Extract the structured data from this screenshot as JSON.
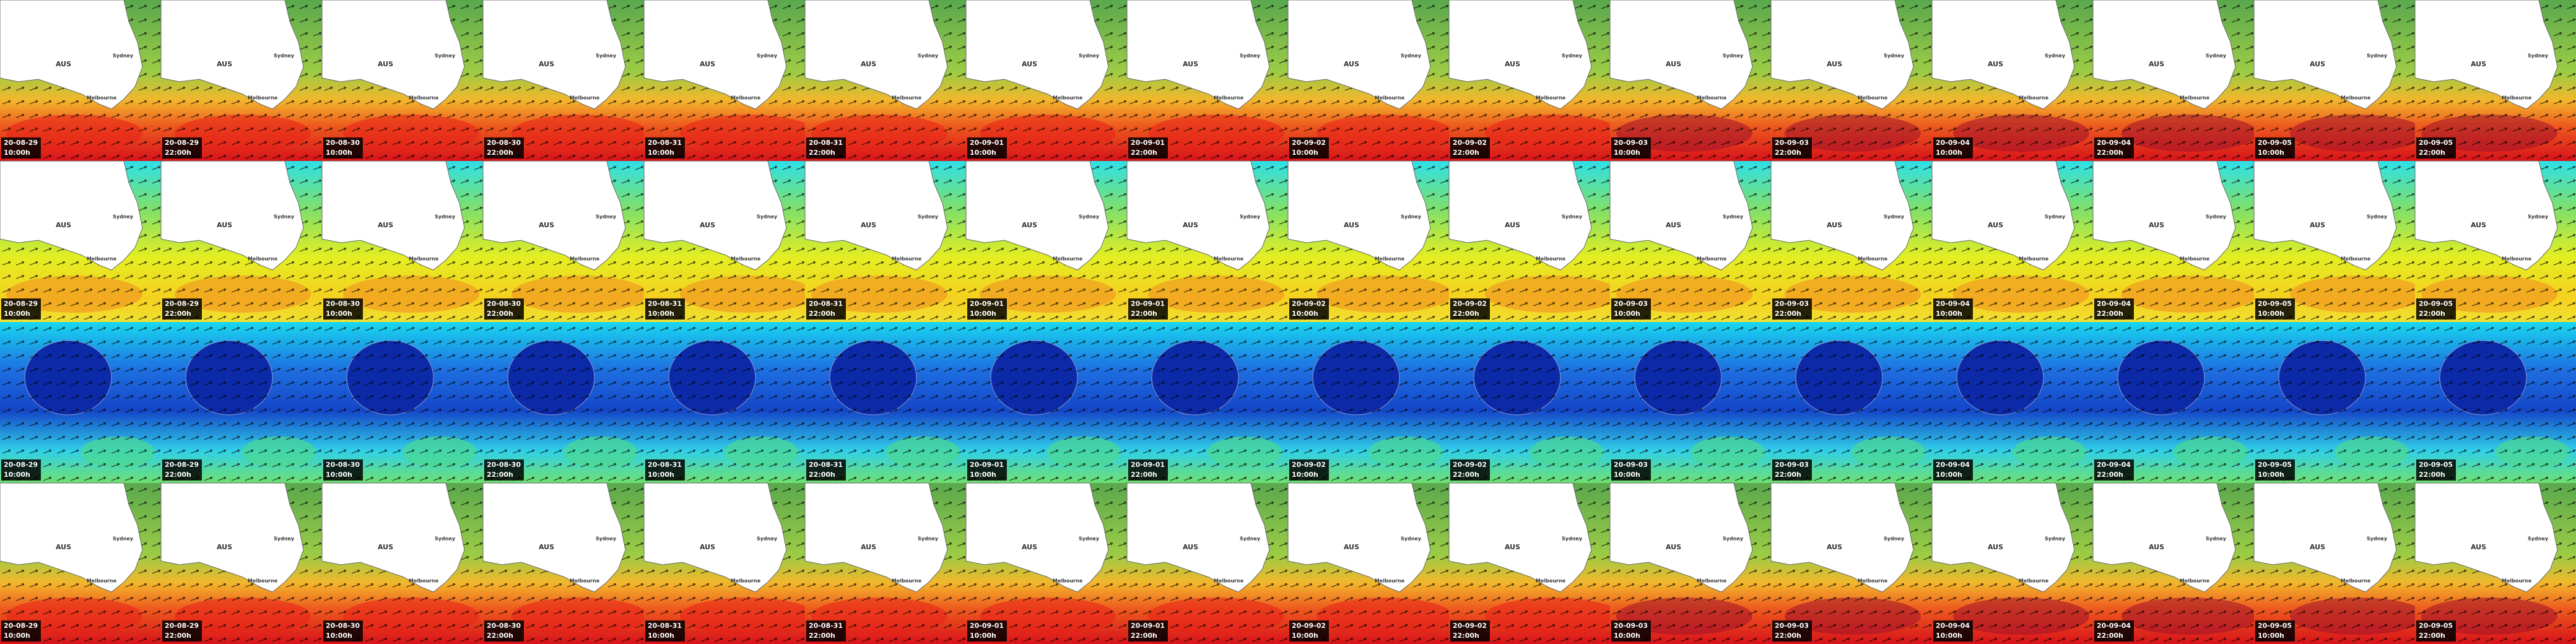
{
  "map_labels": {
    "country": "AUS",
    "city_east": "Sydney",
    "city_south": "Melbourne"
  },
  "timestamps": [
    {
      "date": "20-08-29",
      "time": "10:00h"
    },
    {
      "date": "20-08-29",
      "time": "22:00h"
    },
    {
      "date": "20-08-30",
      "time": "10:00h"
    },
    {
      "date": "20-08-30",
      "time": "22:00h"
    },
    {
      "date": "20-08-31",
      "time": "10:00h"
    },
    {
      "date": "20-08-31",
      "time": "22:00h"
    },
    {
      "date": "20-09-01",
      "time": "10:00h"
    },
    {
      "date": "20-09-01",
      "time": "22:00h"
    },
    {
      "date": "20-09-02",
      "time": "10:00h"
    },
    {
      "date": "20-09-02",
      "time": "22:00h"
    },
    {
      "date": "20-09-03",
      "time": "10:00h"
    },
    {
      "date": "20-09-03",
      "time": "22:00h"
    },
    {
      "date": "20-09-04",
      "time": "10:00h"
    },
    {
      "date": "20-09-04",
      "time": "22:00h"
    },
    {
      "date": "20-09-05",
      "time": "10:00h"
    },
    {
      "date": "20-09-05",
      "time": "22:00h"
    }
  ]
}
